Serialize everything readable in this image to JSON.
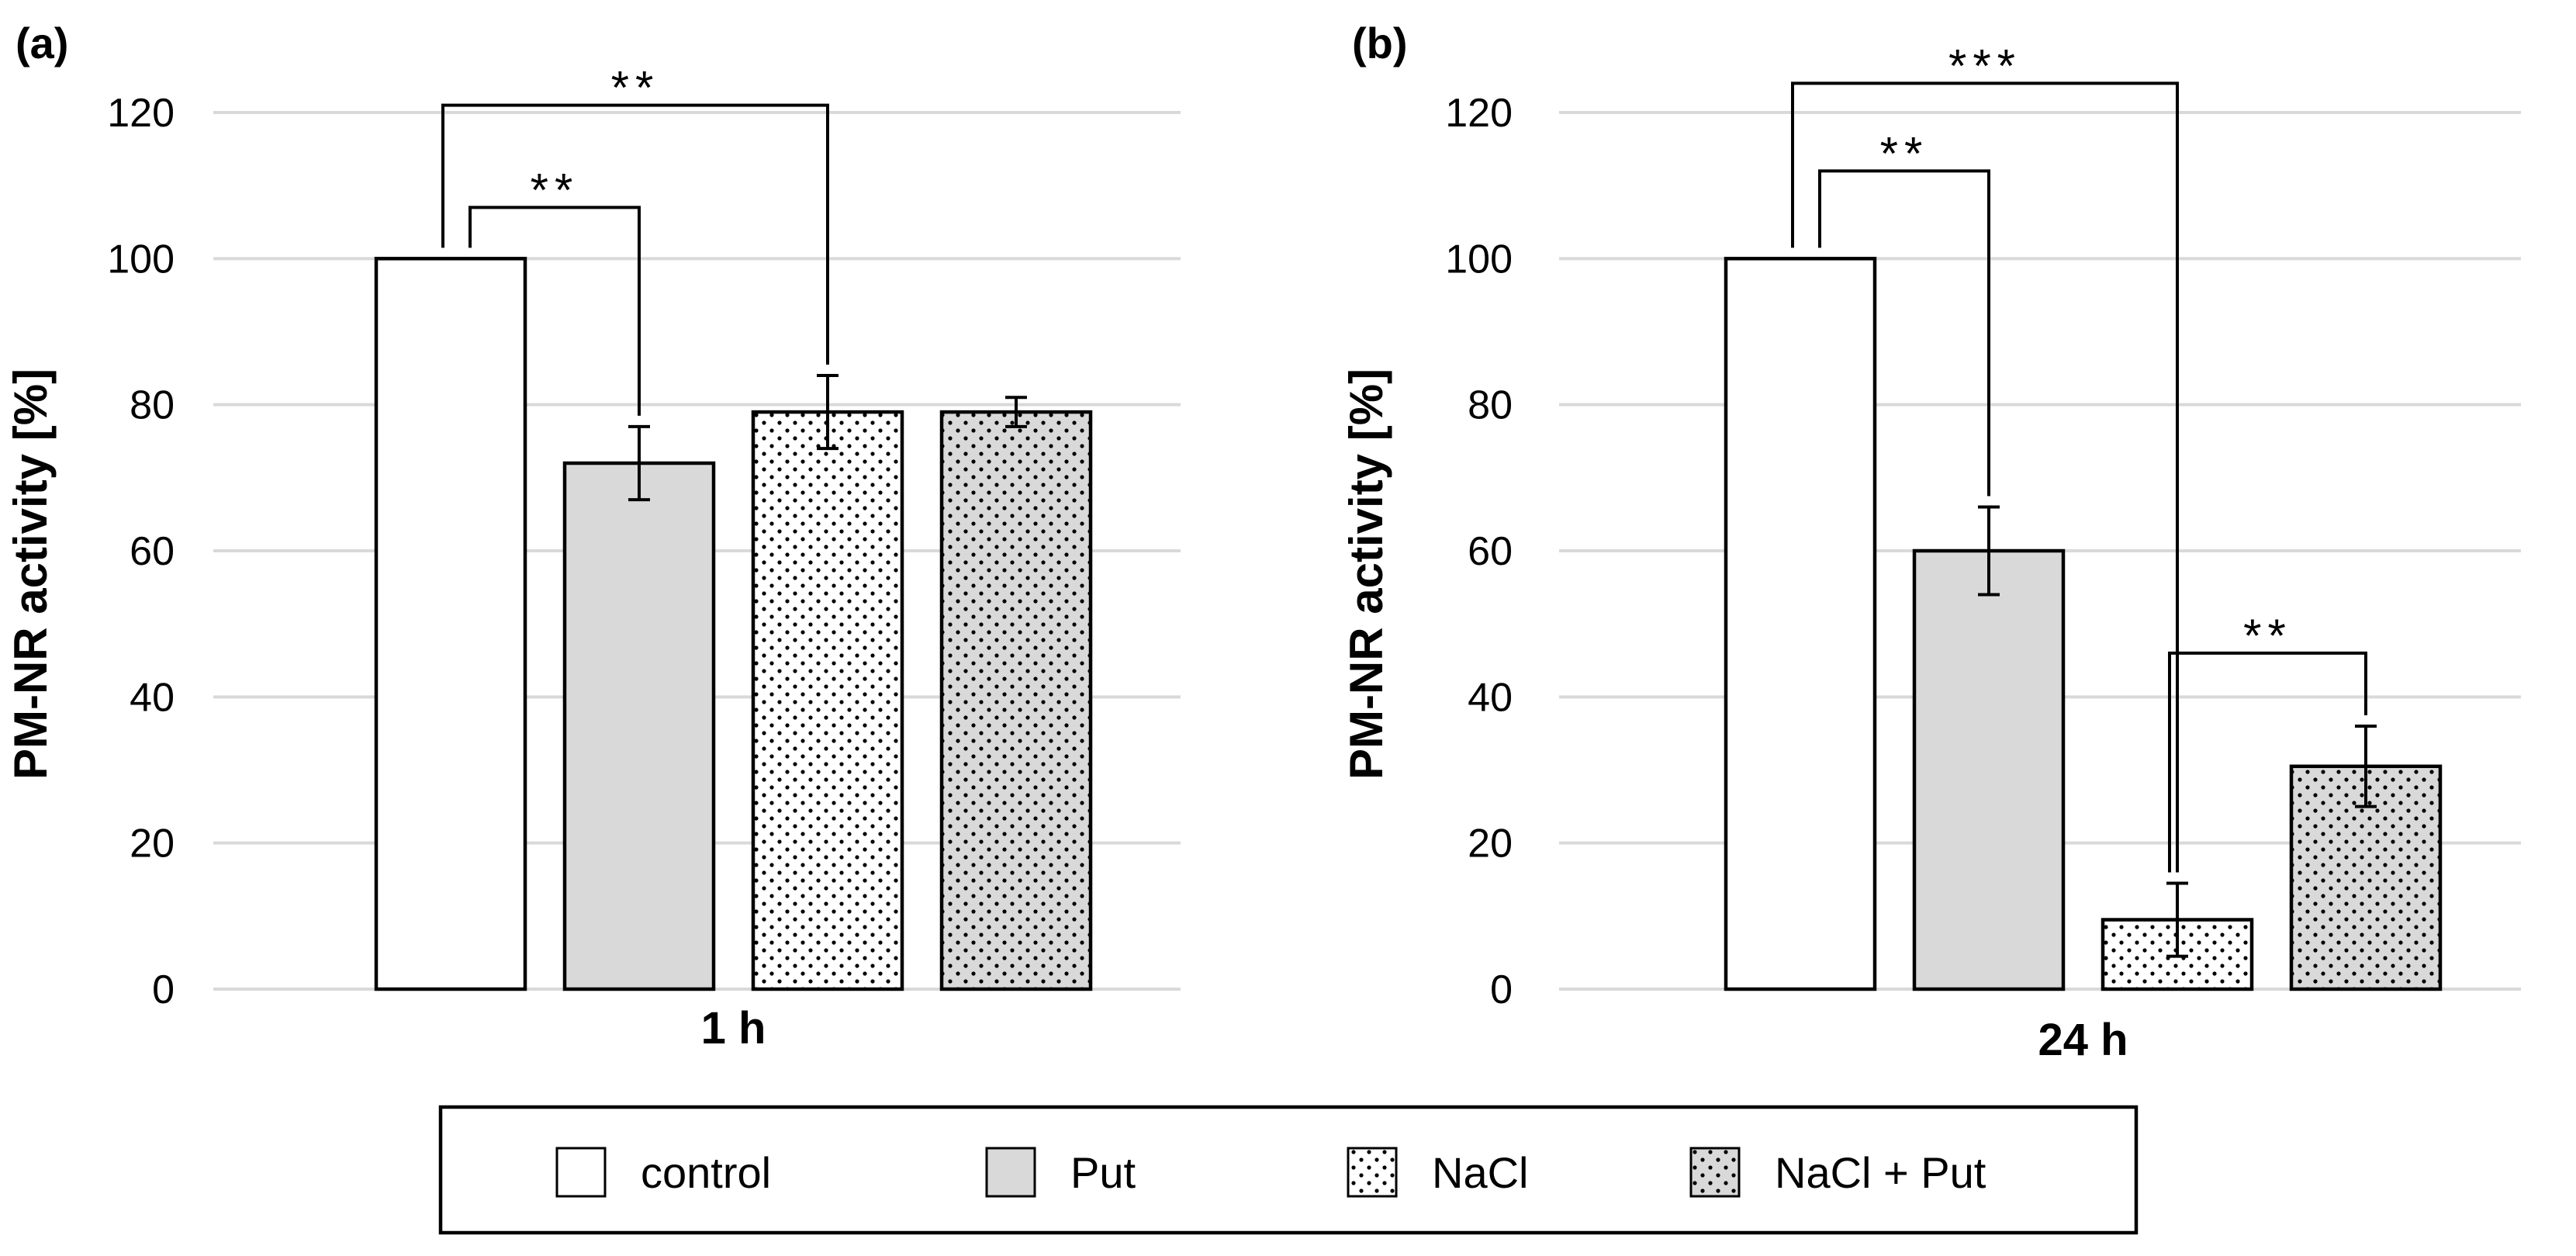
{
  "chart_data": [
    {
      "type": "bar",
      "panel_label": "(a)",
      "xlabel": "1 h",
      "ylabel": "PM-NR activity [%]",
      "ylim": [
        0,
        120
      ],
      "yticks": [
        0,
        20,
        40,
        60,
        80,
        100,
        120
      ],
      "grid": true,
      "categories": [
        "control",
        "Put",
        "NaCl",
        "NaCl + Put"
      ],
      "values": [
        100,
        72,
        79,
        79
      ],
      "errors": [
        0,
        5,
        5,
        2
      ],
      "significance": [
        {
          "from": 0,
          "to": 1,
          "label": "**",
          "level": 107
        },
        {
          "from": 0,
          "to": 2,
          "label": "**",
          "level": 121
        }
      ]
    },
    {
      "type": "bar",
      "panel_label": "(b)",
      "xlabel": "24 h",
      "ylabel": "PM-NR activity [%]",
      "ylim": [
        0,
        120
      ],
      "yticks": [
        0,
        20,
        40,
        60,
        80,
        100,
        120
      ],
      "grid": true,
      "categories": [
        "control",
        "Put",
        "NaCl",
        "NaCl + Put"
      ],
      "values": [
        100,
        60,
        9.5,
        30.5
      ],
      "errors": [
        0,
        6,
        5,
        5.5
      ],
      "significance": [
        {
          "from": 0,
          "to": 1,
          "label": "**",
          "level": 112
        },
        {
          "from": 0,
          "to": 2,
          "label": "***",
          "level": 124
        },
        {
          "from": 2,
          "to": 3,
          "label": "**",
          "level": 46
        }
      ]
    }
  ],
  "legend": {
    "items": [
      {
        "label": "control",
        "fill": "white"
      },
      {
        "label": "Put",
        "fill": "gray"
      },
      {
        "label": "NaCl",
        "fill": "dots-white"
      },
      {
        "label": "NaCl  + Put",
        "fill": "dots-gray"
      }
    ]
  },
  "colors": {
    "bar_gray": "#d9d9d9",
    "grid": "#d9d9d9",
    "stroke": "#000000"
  }
}
